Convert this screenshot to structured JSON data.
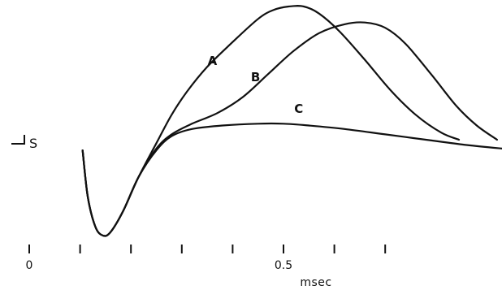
{
  "chart_data": {
    "type": "line",
    "xlabel": "msec",
    "x_tick_labels": [
      {
        "x": 0,
        "label": "0"
      },
      {
        "x": 0.5,
        "label": "0.5"
      }
    ],
    "x_ticks": [
      0,
      0.1,
      0.2,
      0.3,
      0.4,
      0.5,
      0.6,
      0.7
    ],
    "xlim": [
      -0.05,
      0.95
    ],
    "ylim": [
      -0.1,
      1.3
    ],
    "scale_bar_label": "S",
    "series": [
      {
        "name": "A",
        "label_at": {
          "x": 0.36,
          "y": 0.96
        },
        "points": [
          [
            0.105,
            0.48
          ],
          [
            0.115,
            0.22
          ],
          [
            0.13,
            0.05
          ],
          [
            0.145,
            0.0
          ],
          [
            0.16,
            0.02
          ],
          [
            0.185,
            0.14
          ],
          [
            0.215,
            0.33
          ],
          [
            0.25,
            0.52
          ],
          [
            0.28,
            0.68
          ],
          [
            0.31,
            0.81
          ],
          [
            0.35,
            0.95
          ],
          [
            0.4,
            1.09
          ],
          [
            0.45,
            1.22
          ],
          [
            0.48,
            1.27
          ],
          [
            0.51,
            1.29
          ],
          [
            0.54,
            1.29
          ],
          [
            0.57,
            1.25
          ],
          [
            0.61,
            1.15
          ],
          [
            0.66,
            0.99
          ],
          [
            0.71,
            0.82
          ],
          [
            0.76,
            0.68
          ],
          [
            0.81,
            0.58
          ],
          [
            0.845,
            0.54
          ]
        ]
      },
      {
        "name": "B",
        "label_at": {
          "x": 0.445,
          "y": 0.87
        },
        "points": [
          [
            0.105,
            0.48
          ],
          [
            0.115,
            0.22
          ],
          [
            0.13,
            0.05
          ],
          [
            0.145,
            0.0
          ],
          [
            0.16,
            0.02
          ],
          [
            0.185,
            0.14
          ],
          [
            0.215,
            0.33
          ],
          [
            0.25,
            0.49
          ],
          [
            0.28,
            0.57
          ],
          [
            0.32,
            0.63
          ],
          [
            0.37,
            0.69
          ],
          [
            0.42,
            0.78
          ],
          [
            0.47,
            0.91
          ],
          [
            0.52,
            1.04
          ],
          [
            0.57,
            1.14
          ],
          [
            0.62,
            1.19
          ],
          [
            0.66,
            1.2
          ],
          [
            0.7,
            1.17
          ],
          [
            0.74,
            1.08
          ],
          [
            0.79,
            0.91
          ],
          [
            0.84,
            0.73
          ],
          [
            0.88,
            0.62
          ],
          [
            0.92,
            0.54
          ]
        ]
      },
      {
        "name": "C",
        "label_at": {
          "x": 0.53,
          "y": 0.69
        },
        "points": [
          [
            0.105,
            0.48
          ],
          [
            0.115,
            0.22
          ],
          [
            0.13,
            0.05
          ],
          [
            0.145,
            0.0
          ],
          [
            0.16,
            0.02
          ],
          [
            0.185,
            0.14
          ],
          [
            0.215,
            0.33
          ],
          [
            0.25,
            0.48
          ],
          [
            0.28,
            0.56
          ],
          [
            0.32,
            0.6
          ],
          [
            0.38,
            0.62
          ],
          [
            0.45,
            0.63
          ],
          [
            0.5,
            0.63
          ],
          [
            0.55,
            0.62
          ],
          [
            0.62,
            0.6
          ],
          [
            0.7,
            0.57
          ],
          [
            0.78,
            0.54
          ],
          [
            0.86,
            0.51
          ],
          [
            0.93,
            0.49
          ]
        ]
      }
    ],
    "grid": false,
    "legend": "none"
  }
}
